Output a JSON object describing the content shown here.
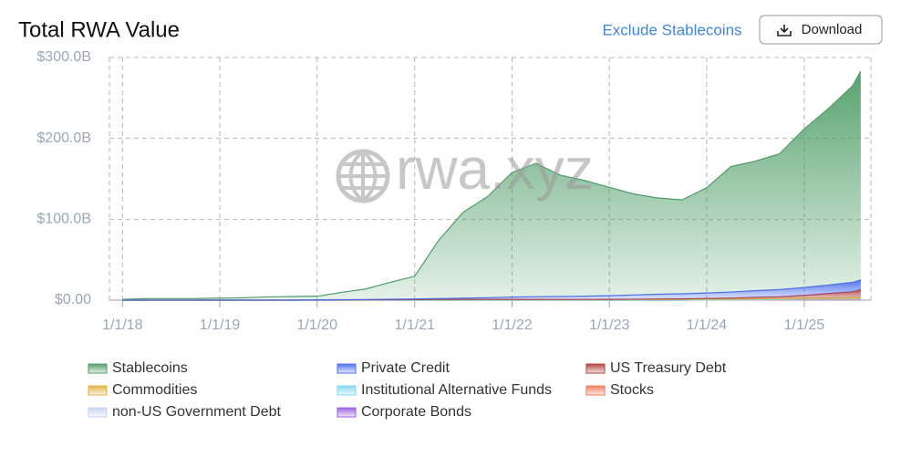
{
  "header": {
    "title": "Total RWA Value",
    "toggle": "Exclude Stablecoins",
    "button": "Download",
    "watermark": "rwa.xyz"
  },
  "chart_data": {
    "type": "stacked-area",
    "x": [
      "1/1/18",
      "4/1/18",
      "7/1/18",
      "10/1/18",
      "1/1/19",
      "4/1/19",
      "7/1/19",
      "10/1/19",
      "1/1/20",
      "4/1/20",
      "7/1/20",
      "10/1/20",
      "1/1/21",
      "4/1/21",
      "7/1/21",
      "10/1/21",
      "1/1/22",
      "4/1/22",
      "7/1/22",
      "10/1/22",
      "1/1/23",
      "4/1/23",
      "7/1/23",
      "10/1/23",
      "1/1/24",
      "4/1/24",
      "7/1/24",
      "10/1/24",
      "1/1/25",
      "4/1/25",
      "7/1/25",
      "8/1/25"
    ],
    "series": [
      {
        "name": "Stablecoins",
        "color": "#4f9d68",
        "values": [
          1,
          2,
          2,
          2,
          2.5,
          3,
          4,
          4.5,
          4.5,
          9,
          13,
          21,
          28,
          72,
          106,
          125,
          154,
          165,
          150,
          143,
          134,
          125,
          119,
          116,
          130,
          155,
          160,
          168,
          196,
          218,
          243,
          258
        ]
      },
      {
        "name": "Private Credit",
        "color": "#4a6cf0",
        "values": [
          0,
          0,
          0,
          0,
          0,
          0,
          0,
          0,
          0.1,
          0.2,
          0.3,
          0.5,
          0.8,
          1.2,
          1.6,
          2,
          2.8,
          3.2,
          3.6,
          4,
          4.5,
          5.2,
          5.8,
          6.2,
          6.8,
          7.5,
          8.2,
          9,
          9.8,
          10.5,
          11.5,
          12
        ]
      },
      {
        "name": "US Treasury Debt",
        "color": "#b0413e",
        "values": [
          0,
          0,
          0,
          0,
          0,
          0,
          0,
          0,
          0,
          0,
          0,
          0,
          0,
          0,
          0,
          0,
          0,
          0,
          0,
          0,
          0.1,
          0.3,
          0.6,
          0.8,
          0.8,
          1.2,
          1.8,
          2.2,
          3.5,
          5.5,
          7.3,
          9.5
        ]
      },
      {
        "name": "Commodities",
        "color": "#e0b040",
        "values": [
          0,
          0,
          0,
          0,
          0,
          0,
          0,
          0,
          0.3,
          0.4,
          0.5,
          0.6,
          0.7,
          0.8,
          0.9,
          1,
          1,
          1,
          0.9,
          0.9,
          0.9,
          0.9,
          0.9,
          0.9,
          1,
          1,
          1.1,
          1.2,
          1.3,
          1.4,
          1.6,
          1.7
        ]
      },
      {
        "name": "Institutional Alternative Funds",
        "color": "#7fd8ee",
        "values": [
          0,
          0,
          0,
          0,
          0,
          0,
          0,
          0,
          0,
          0,
          0,
          0,
          0,
          0,
          0,
          0,
          0,
          0,
          0,
          0,
          0,
          0,
          0,
          0,
          0.1,
          0.2,
          0.3,
          0.4,
          0.5,
          0.6,
          0.7,
          0.8
        ]
      },
      {
        "name": "Stocks",
        "color": "#f07a5a",
        "values": [
          0,
          0,
          0,
          0,
          0,
          0,
          0,
          0,
          0,
          0,
          0,
          0,
          0,
          0,
          0,
          0,
          0,
          0,
          0,
          0,
          0,
          0,
          0,
          0,
          0,
          0,
          0,
          0,
          0.1,
          0.2,
          0.3,
          0.4
        ]
      },
      {
        "name": "non-US Government Debt",
        "color": "#c7d4ee",
        "values": [
          0,
          0,
          0,
          0,
          0,
          0,
          0,
          0,
          0,
          0,
          0,
          0,
          0,
          0,
          0,
          0,
          0,
          0,
          0,
          0,
          0,
          0,
          0,
          0,
          0.1,
          0.1,
          0.2,
          0.2,
          0.3,
          0.3,
          0.4,
          0.4
        ]
      },
      {
        "name": "Corporate Bonds",
        "color": "#9b5ce0",
        "values": [
          0,
          0,
          0,
          0,
          0,
          0,
          0,
          0,
          0,
          0,
          0,
          0,
          0,
          0,
          0,
          0,
          0,
          0,
          0,
          0,
          0,
          0,
          0,
          0,
          0.1,
          0.1,
          0.1,
          0.1,
          0.2,
          0.2,
          0.2,
          0.2
        ]
      }
    ],
    "xlim": [
      "11/13/17",
      "9/8/25"
    ],
    "xticks": [
      "1/1/18",
      "1/1/19",
      "1/1/20",
      "1/1/21",
      "1/1/22",
      "1/1/23",
      "1/1/24",
      "1/1/25"
    ],
    "ylim": [
      0,
      300
    ],
    "yticks": [
      {
        "value": 0,
        "label": "$0.00"
      },
      {
        "value": 100,
        "label": "$100.0B"
      },
      {
        "value": 200,
        "label": "$200.0B"
      },
      {
        "value": 300,
        "label": "$300.0B"
      }
    ],
    "grid": true
  }
}
